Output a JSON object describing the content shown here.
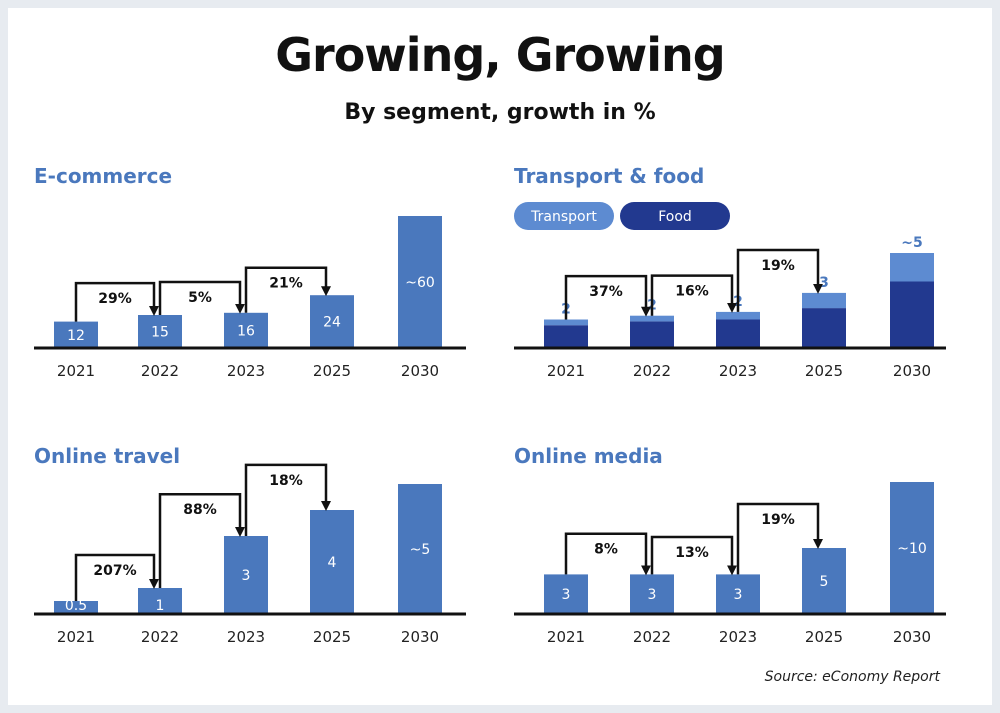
{
  "title": "Growing, Growing",
  "subtitle": "By segment, growth in %",
  "source": "Source: eConomy Report",
  "colors": {
    "bar": "#4a78bd",
    "food": "#22398f",
    "transport": "#5d8bd1",
    "arrow": "#111111"
  },
  "chart_data": [
    {
      "type": "bar",
      "title": "E-commerce",
      "categories": [
        "2021",
        "2022",
        "2023",
        "2025",
        "2030"
      ],
      "values": [
        12,
        15,
        16,
        24,
        60
      ],
      "labels": [
        "12",
        "15",
        "16",
        "24",
        "~60"
      ],
      "growth": [
        {
          "from": 0,
          "to": 1,
          "label": "29%"
        },
        {
          "from": 1,
          "to": 2,
          "label": "5%"
        },
        {
          "from": 2,
          "to": 3,
          "label": "21%"
        }
      ]
    },
    {
      "type": "bar",
      "title": "Transport & food",
      "stacked": true,
      "categories": [
        "2021",
        "2022",
        "2023",
        "2025",
        "2030"
      ],
      "series": [
        {
          "name": "Food",
          "values": [
            1.2,
            1.4,
            1.5,
            2.1,
            3.5
          ]
        },
        {
          "name": "Transport",
          "values": [
            0.3,
            0.3,
            0.4,
            0.8,
            1.5
          ]
        }
      ],
      "totals": [
        "2",
        "2",
        "2",
        "3",
        "~5"
      ],
      "legend": [
        "Transport",
        "Food"
      ],
      "growth": [
        {
          "from": 0,
          "to": 1,
          "label": "37%"
        },
        {
          "from": 1,
          "to": 2,
          "label": "16%"
        },
        {
          "from": 2,
          "to": 3,
          "label": "19%"
        }
      ]
    },
    {
      "type": "bar",
      "title": "Online travel",
      "categories": [
        "2021",
        "2022",
        "2023",
        "2025",
        "2030"
      ],
      "values": [
        0.5,
        1,
        3,
        4,
        5
      ],
      "labels": [
        "0.5",
        "1",
        "3",
        "4",
        "~5"
      ],
      "growth": [
        {
          "from": 0,
          "to": 1,
          "label": "207%"
        },
        {
          "from": 1,
          "to": 2,
          "label": "88%"
        },
        {
          "from": 2,
          "to": 3,
          "label": "18%"
        }
      ]
    },
    {
      "type": "bar",
      "title": "Online media",
      "categories": [
        "2021",
        "2022",
        "2023",
        "2025",
        "2030"
      ],
      "values": [
        3,
        3,
        3,
        5,
        10
      ],
      "labels": [
        "3",
        "3",
        "3",
        "5",
        "~10"
      ],
      "growth": [
        {
          "from": 0,
          "to": 1,
          "label": "8%"
        },
        {
          "from": 1,
          "to": 2,
          "label": "13%"
        },
        {
          "from": 2,
          "to": 3,
          "label": "19%"
        }
      ]
    }
  ]
}
